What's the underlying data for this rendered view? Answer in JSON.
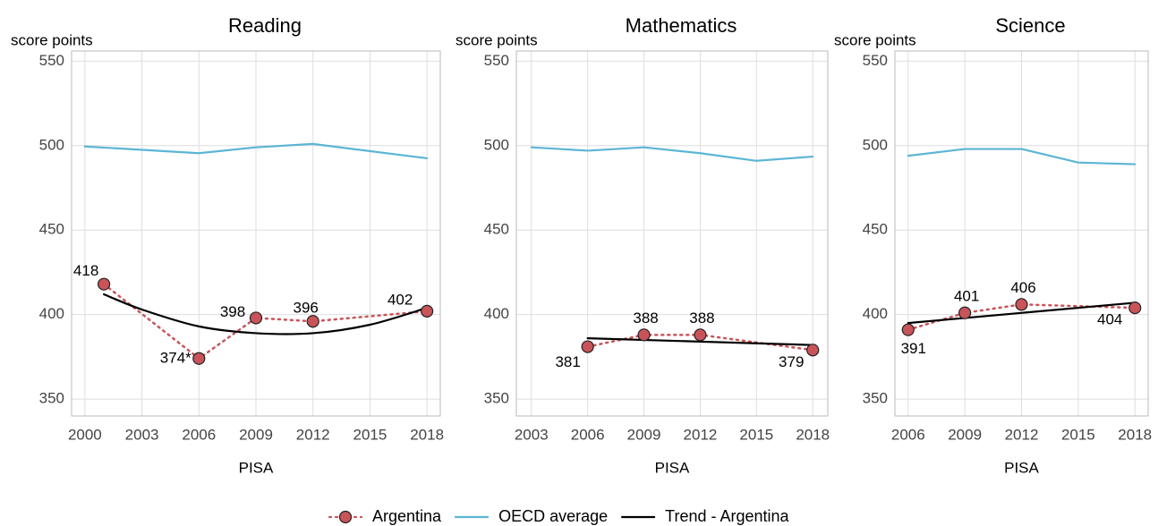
{
  "chart_data": [
    {
      "type": "line",
      "title": "Reading",
      "ylabel": "score points",
      "xlabel": "PISA",
      "xlim": [
        1999.3,
        2018.7
      ],
      "xticks": [
        2000,
        2003,
        2006,
        2009,
        2012,
        2015,
        2018
      ],
      "ylim": [
        340,
        556
      ],
      "yticks": [
        350,
        400,
        450,
        500,
        550
      ],
      "grid": true,
      "series": [
        {
          "name": "Argentina",
          "color": "#c8545a",
          "x": [
            2001,
            2006,
            2009,
            2012,
            2018
          ],
          "values": [
            418,
            374,
            398,
            396,
            402
          ],
          "value_labels": [
            "418",
            "374*",
            "398",
            "396",
            "402"
          ]
        },
        {
          "name": "OECD average",
          "color": "#5bb5d5",
          "x": [
            2000,
            2006,
            2009,
            2012,
            2018
          ],
          "values": [
            499.5,
            495.5,
            499,
            501,
            492.5
          ]
        },
        {
          "name": "Trend - Argentina",
          "color": "#000000",
          "x": [
            2001,
            2003,
            2006,
            2009,
            2012,
            2015,
            2018
          ],
          "values": [
            412,
            403,
            393,
            389,
            389,
            394,
            404
          ]
        }
      ]
    },
    {
      "type": "line",
      "title": "Mathematics",
      "ylabel": "score points",
      "xlabel": "PISA",
      "xlim": [
        2002.2,
        2018.8
      ],
      "xticks": [
        2003,
        2006,
        2009,
        2012,
        2015,
        2018
      ],
      "ylim": [
        340,
        556
      ],
      "yticks": [
        350,
        400,
        450,
        500,
        550
      ],
      "grid": true,
      "series": [
        {
          "name": "Argentina",
          "color": "#c8545a",
          "x": [
            2006,
            2009,
            2012,
            2018
          ],
          "values": [
            381,
            388,
            388,
            379
          ],
          "value_labels": [
            "381",
            "388",
            "388",
            "379"
          ]
        },
        {
          "name": "OECD average",
          "color": "#5bb5d5",
          "x": [
            2003,
            2006,
            2009,
            2012,
            2015,
            2018
          ],
          "values": [
            499,
            497,
            499,
            495.5,
            491,
            493.5
          ]
        },
        {
          "name": "Trend - Argentina",
          "color": "#000000",
          "x": [
            2006,
            2018
          ],
          "values": [
            386,
            382
          ]
        }
      ]
    },
    {
      "type": "line",
      "title": "Science",
      "ylabel": "score points",
      "xlabel": "PISA",
      "xlim": [
        2005.3,
        2018.7
      ],
      "xticks": [
        2006,
        2009,
        2012,
        2015,
        2018
      ],
      "ylim": [
        340,
        556
      ],
      "yticks": [
        350,
        400,
        450,
        500,
        550
      ],
      "grid": true,
      "series": [
        {
          "name": "Argentina",
          "color": "#c8545a",
          "x": [
            2006,
            2009,
            2012,
            2018
          ],
          "values": [
            391,
            401,
            406,
            404
          ],
          "value_labels": [
            "391",
            "401",
            "406",
            "404"
          ]
        },
        {
          "name": "OECD average",
          "color": "#5bb5d5",
          "x": [
            2006,
            2009,
            2012,
            2015,
            2018
          ],
          "values": [
            494,
            498,
            498,
            490,
            489
          ]
        },
        {
          "name": "Trend - Argentina",
          "color": "#000000",
          "x": [
            2006,
            2018
          ],
          "values": [
            395,
            407
          ]
        }
      ]
    }
  ]
}
